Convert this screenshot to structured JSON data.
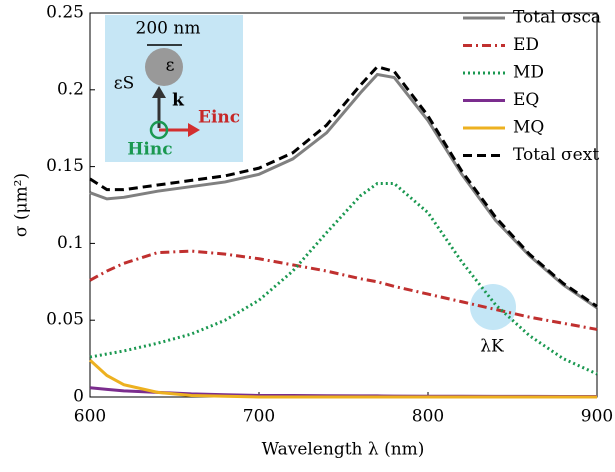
{
  "chart_data": {
    "type": "line",
    "x_label": "Wavelength λ (nm)",
    "y_label": "σ (μm²)",
    "x": [
      600,
      610,
      620,
      640,
      660,
      680,
      700,
      720,
      740,
      760,
      770,
      780,
      800,
      820,
      840,
      860,
      880,
      900
    ],
    "series": [
      {
        "name": "Total σsca",
        "color": "#808080",
        "dash": "solid",
        "values": [
          0.133,
          0.129,
          0.13,
          0.134,
          0.137,
          0.14,
          0.145,
          0.155,
          0.172,
          0.198,
          0.21,
          0.208,
          0.18,
          0.145,
          0.115,
          0.092,
          0.073,
          0.058
        ]
      },
      {
        "name": "ED",
        "color": "#c0302f",
        "dash": "dashdot",
        "values": [
          0.076,
          0.082,
          0.087,
          0.094,
          0.095,
          0.093,
          0.09,
          0.086,
          0.082,
          0.077,
          0.075,
          0.072,
          0.067,
          0.062,
          0.057,
          0.052,
          0.048,
          0.044
        ]
      },
      {
        "name": "MD",
        "color": "#1a9850",
        "dash": "dotted",
        "values": [
          0.026,
          0.028,
          0.03,
          0.035,
          0.041,
          0.05,
          0.063,
          0.082,
          0.107,
          0.131,
          0.139,
          0.139,
          0.12,
          0.088,
          0.06,
          0.04,
          0.025,
          0.015
        ]
      },
      {
        "name": "EQ",
        "color": "#7b2d8e",
        "dash": "solid",
        "values": [
          0.006,
          0.005,
          0.004,
          0.003,
          0.002,
          0.0015,
          0.001,
          0.001,
          0.0008,
          0.0007,
          0.0007,
          0.0006,
          0.0005,
          0.0005,
          0.0004,
          0.0004,
          0.0003,
          0.0003
        ]
      },
      {
        "name": "MQ",
        "color": "#edb120",
        "dash": "solid",
        "values": [
          0.024,
          0.014,
          0.008,
          0.003,
          0.001,
          0.0005,
          0,
          0,
          0,
          0,
          0,
          0,
          0,
          0,
          0,
          0,
          0,
          0
        ]
      },
      {
        "name": "Total σext",
        "color": "#000000",
        "dash": "dashed",
        "values": [
          0.142,
          0.135,
          0.135,
          0.138,
          0.141,
          0.144,
          0.149,
          0.159,
          0.177,
          0.203,
          0.215,
          0.212,
          0.183,
          0.147,
          0.117,
          0.093,
          0.074,
          0.059
        ]
      }
    ],
    "xlim": [
      600,
      900
    ],
    "xticks": [
      600,
      700,
      800,
      900
    ],
    "ylim": [
      0,
      0.25
    ],
    "yticks": [
      0,
      0.05,
      0.1,
      0.15,
      0.2,
      0.25
    ],
    "grid": false,
    "legend": "upper right",
    "annotations": {
      "kerker": "λK",
      "size": "200 nm",
      "particle": "ε",
      "medium": "εS",
      "k": "k",
      "E": "Einc",
      "H": "Hinc"
    }
  }
}
